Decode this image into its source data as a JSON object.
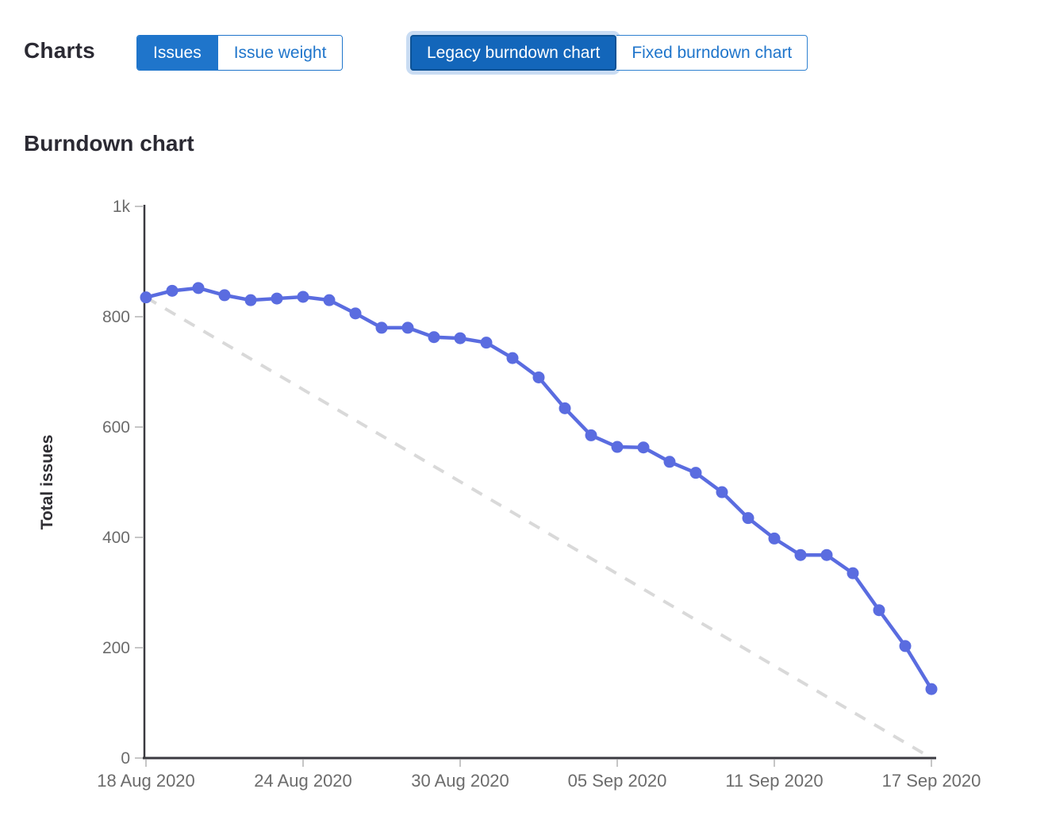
{
  "header": {
    "charts_label": "Charts",
    "issue_toggle": [
      {
        "label": "Issues",
        "selected": true
      },
      {
        "label": "Issue weight",
        "selected": false
      }
    ],
    "chart_type_toggle": [
      {
        "label": "Legacy burndown chart",
        "selected": true
      },
      {
        "label": "Fixed burndown chart",
        "selected": false
      }
    ]
  },
  "theme": {
    "primary_blue": "#1f75cb",
    "selected_button_blue": "#1366ba",
    "selected_button_border": "#0c5296",
    "focus_halo": "#c9dcf3",
    "series_blue": "#5a6ce0",
    "guideline_gray": "#d9d9d9",
    "axis_color": "#3b3a40",
    "tick_color": "#c6c6c6",
    "tick_text_color": "#6c6c6c"
  },
  "chart_data": {
    "type": "line",
    "title": "Burndown chart",
    "xlabel": "",
    "ylabel": "Total issues",
    "ylim": [
      0,
      1000
    ],
    "grid": false,
    "legend": "none",
    "y_ticks": [
      {
        "value": 1000,
        "label": "1k"
      },
      {
        "value": 800,
        "label": "800"
      },
      {
        "value": 600,
        "label": "600"
      },
      {
        "value": 400,
        "label": "400"
      },
      {
        "value": 200,
        "label": "200"
      },
      {
        "value": 0,
        "label": "0"
      }
    ],
    "x_tick_labels": [
      "18 Aug 2020",
      "24 Aug 2020",
      "30 Aug 2020",
      "05 Sep 2020",
      "11 Sep 2020",
      "17 Sep 2020"
    ],
    "x_tick_day_index": [
      0,
      6,
      12,
      18,
      24,
      30
    ],
    "days_total": 30,
    "start_date": "18 Aug 2020",
    "end_date": "17 Sep 2020",
    "series": [
      {
        "name": "Total issues remaining",
        "style": "solid-points",
        "color": "#5a6ce0",
        "values": [
          835,
          847,
          852,
          839,
          830,
          833,
          836,
          830,
          806,
          780,
          780,
          763,
          761,
          753,
          725,
          690,
          634,
          585,
          564,
          563,
          537,
          517,
          482,
          435,
          398,
          368,
          368,
          335,
          268,
          203,
          125
        ]
      },
      {
        "name": "Ideal guideline",
        "style": "dashed",
        "color": "#d9d9d9",
        "points": [
          {
            "day": 0,
            "value": 835
          },
          {
            "day": 30,
            "value": 0
          }
        ]
      }
    ]
  }
}
